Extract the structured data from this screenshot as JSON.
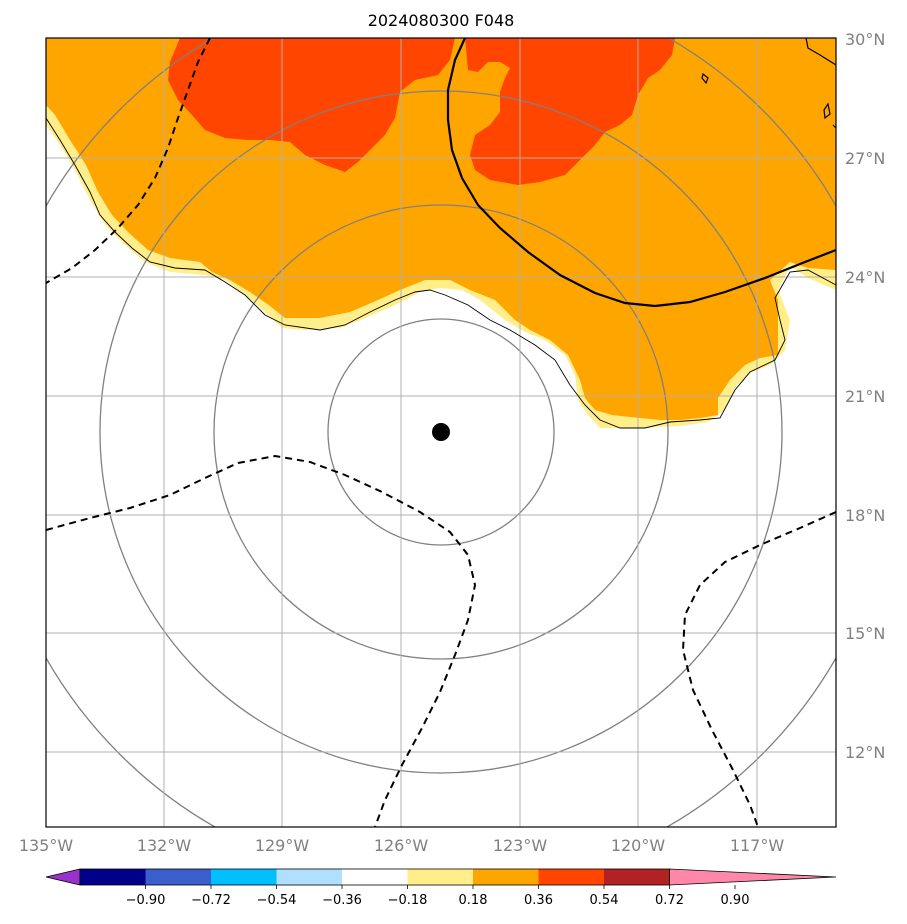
{
  "title": "2024080300 F048",
  "longitude_labels": [
    "135°W",
    "132°W",
    "129°W",
    "126°W",
    "123°W",
    "120°W",
    "117°W"
  ],
  "latitude_labels": [
    "30°N",
    "27°N",
    "24°N",
    "21°N",
    "18°N",
    "15°N",
    "12°N"
  ],
  "colorbar": {
    "tick_labels": [
      "−0.90",
      "−0.72",
      "−0.54",
      "−0.36",
      "−0.18",
      "0.18",
      "0.36",
      "0.54",
      "0.72",
      "0.90"
    ],
    "colors": [
      "#9932cc",
      "#00008b",
      "#3a5fcd",
      "#00bfff",
      "#b0e0ff",
      "#ffffff",
      "#ffee8a",
      "#ffa500",
      "#ff4500",
      "#b22222",
      "#ff88aa"
    ]
  },
  "field_colors": {
    "band_0_18": "#ffee8a",
    "band_0_36": "#ffa500",
    "band_0_54": "#ff4500"
  },
  "storm_center": {
    "lon": -125.0,
    "lat": 20.1
  }
}
